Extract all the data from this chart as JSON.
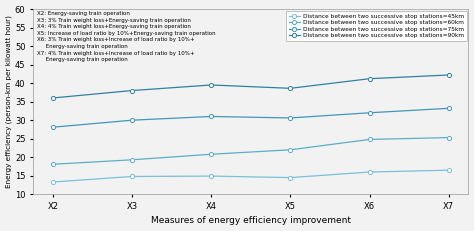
{
  "x_labels": [
    "X2",
    "X3",
    "X4",
    "X5",
    "X6",
    "X7"
  ],
  "series": [
    {
      "label": "Distance between two successive stop stations=45km",
      "values": [
        13.3,
        14.8,
        14.9,
        14.5,
        16.0,
        16.5
      ],
      "color": "#7bbfda",
      "marker": "o"
    },
    {
      "label": "Distance between two successive stop stations=60km",
      "values": [
        18.1,
        19.3,
        20.8,
        22.0,
        24.8,
        25.3
      ],
      "color": "#5aaec8",
      "marker": "s"
    },
    {
      "label": "Distance between two successive stop stations=75km",
      "values": [
        28.1,
        30.0,
        31.0,
        30.6,
        32.0,
        33.2
      ],
      "color": "#4097b8",
      "marker": "o"
    },
    {
      "label": "Distance between two successive stop stations=90km",
      "values": [
        36.0,
        38.0,
        39.5,
        38.6,
        41.2,
        42.2
      ],
      "color": "#2e82a0",
      "marker": "o"
    }
  ],
  "ylabel": "Energy efficiency (person-km per kilowatt hour)",
  "xlabel": "Measures of energy efficiency improvement",
  "ylim": [
    10,
    60
  ],
  "yticks": [
    10,
    15,
    20,
    25,
    30,
    35,
    40,
    45,
    50,
    55,
    60
  ],
  "annotation_text": "X2: Energy-saving train operation\nX3: 3% Train weight loss+Energy-saving train operation\nX4: 4% Train weight loss+Energy-saving train operation\nX5: Increase of load ratio by 10%+Energy-saving train operation\nX6: 3% Train weight loss+Increase of load ratio by 10%+\n     Energy-saving train operation\nX7: 4% Train weight loss+Increase of load ratio by 10%+\n     Energy-saving train operation",
  "bg_color": "#f2f2f2"
}
